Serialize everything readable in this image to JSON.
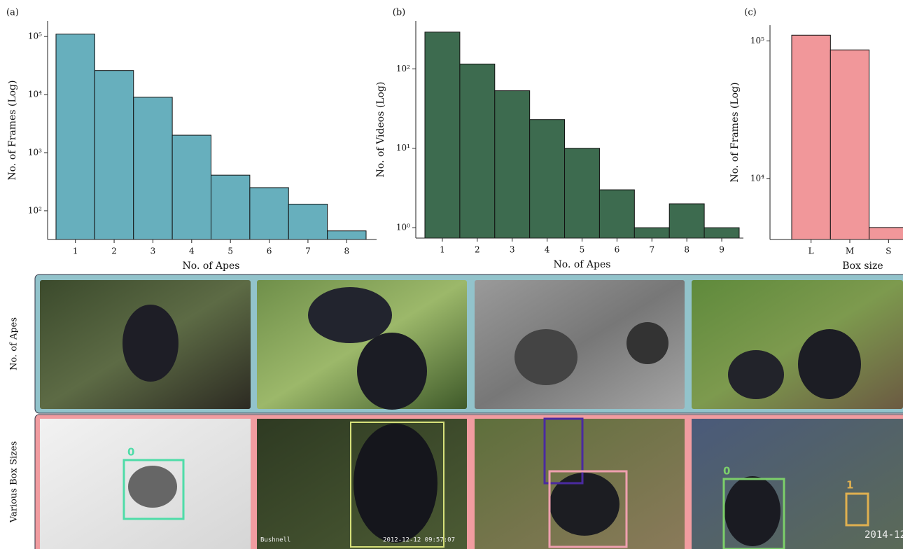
{
  "chart_data": [
    {
      "type": "bar",
      "panel_label": "(a)",
      "xlabel": "No. of Apes",
      "ylabel": "No. of Frames (Log)",
      "log_scale": true,
      "color": "#67afbd",
      "categories": [
        "1",
        "2",
        "3",
        "4",
        "5",
        "6",
        "7",
        "8"
      ],
      "values": [
        110000,
        26000,
        9000,
        2000,
        410,
        250,
        130,
        45
      ],
      "ylim": [
        32,
        185000
      ],
      "yticks": [
        {
          "value": 100,
          "label": "10²"
        },
        {
          "value": 1000,
          "label": "10³"
        },
        {
          "value": 10000,
          "label": "10⁴"
        },
        {
          "value": 100000,
          "label": "10⁵"
        }
      ]
    },
    {
      "type": "bar",
      "panel_label": "(b)",
      "xlabel": "No. of Apes",
      "ylabel": "No. of Videos (Log)",
      "log_scale": true,
      "color": "#3d6b4f",
      "categories": [
        "1",
        "2",
        "3",
        "4",
        "5",
        "6",
        "7",
        "8",
        "9"
      ],
      "values": [
        290,
        115,
        53,
        23,
        10,
        3,
        1,
        2,
        1
      ],
      "ylim": [
        0.74,
        400
      ],
      "yticks": [
        {
          "value": 1,
          "label": "10⁰"
        },
        {
          "value": 10,
          "label": "10¹"
        },
        {
          "value": 100,
          "label": "10²"
        }
      ]
    },
    {
      "type": "bar",
      "panel_label": "(c)",
      "xlabel": "Box size",
      "ylabel": "No. of Frames (Log)",
      "log_scale": true,
      "color": "#f1979a",
      "categories": [
        "L",
        "M",
        "S"
      ],
      "values": [
        110000,
        86000,
        4400
      ],
      "ylim": [
        3600,
        130000
      ],
      "yticks": [
        {
          "value": 10000,
          "label": "10⁴"
        },
        {
          "value": 100000,
          "label": "10⁵"
        }
      ]
    }
  ],
  "image_rows": [
    {
      "label": "No. of Apes"
    },
    {
      "label": "Various Box Sizes",
      "box_labels": [
        "0",
        "0",
        "1"
      ],
      "stamps": [
        "Bushnell",
        "2012-12-12 09:57:07",
        "2014-12"
      ]
    }
  ]
}
